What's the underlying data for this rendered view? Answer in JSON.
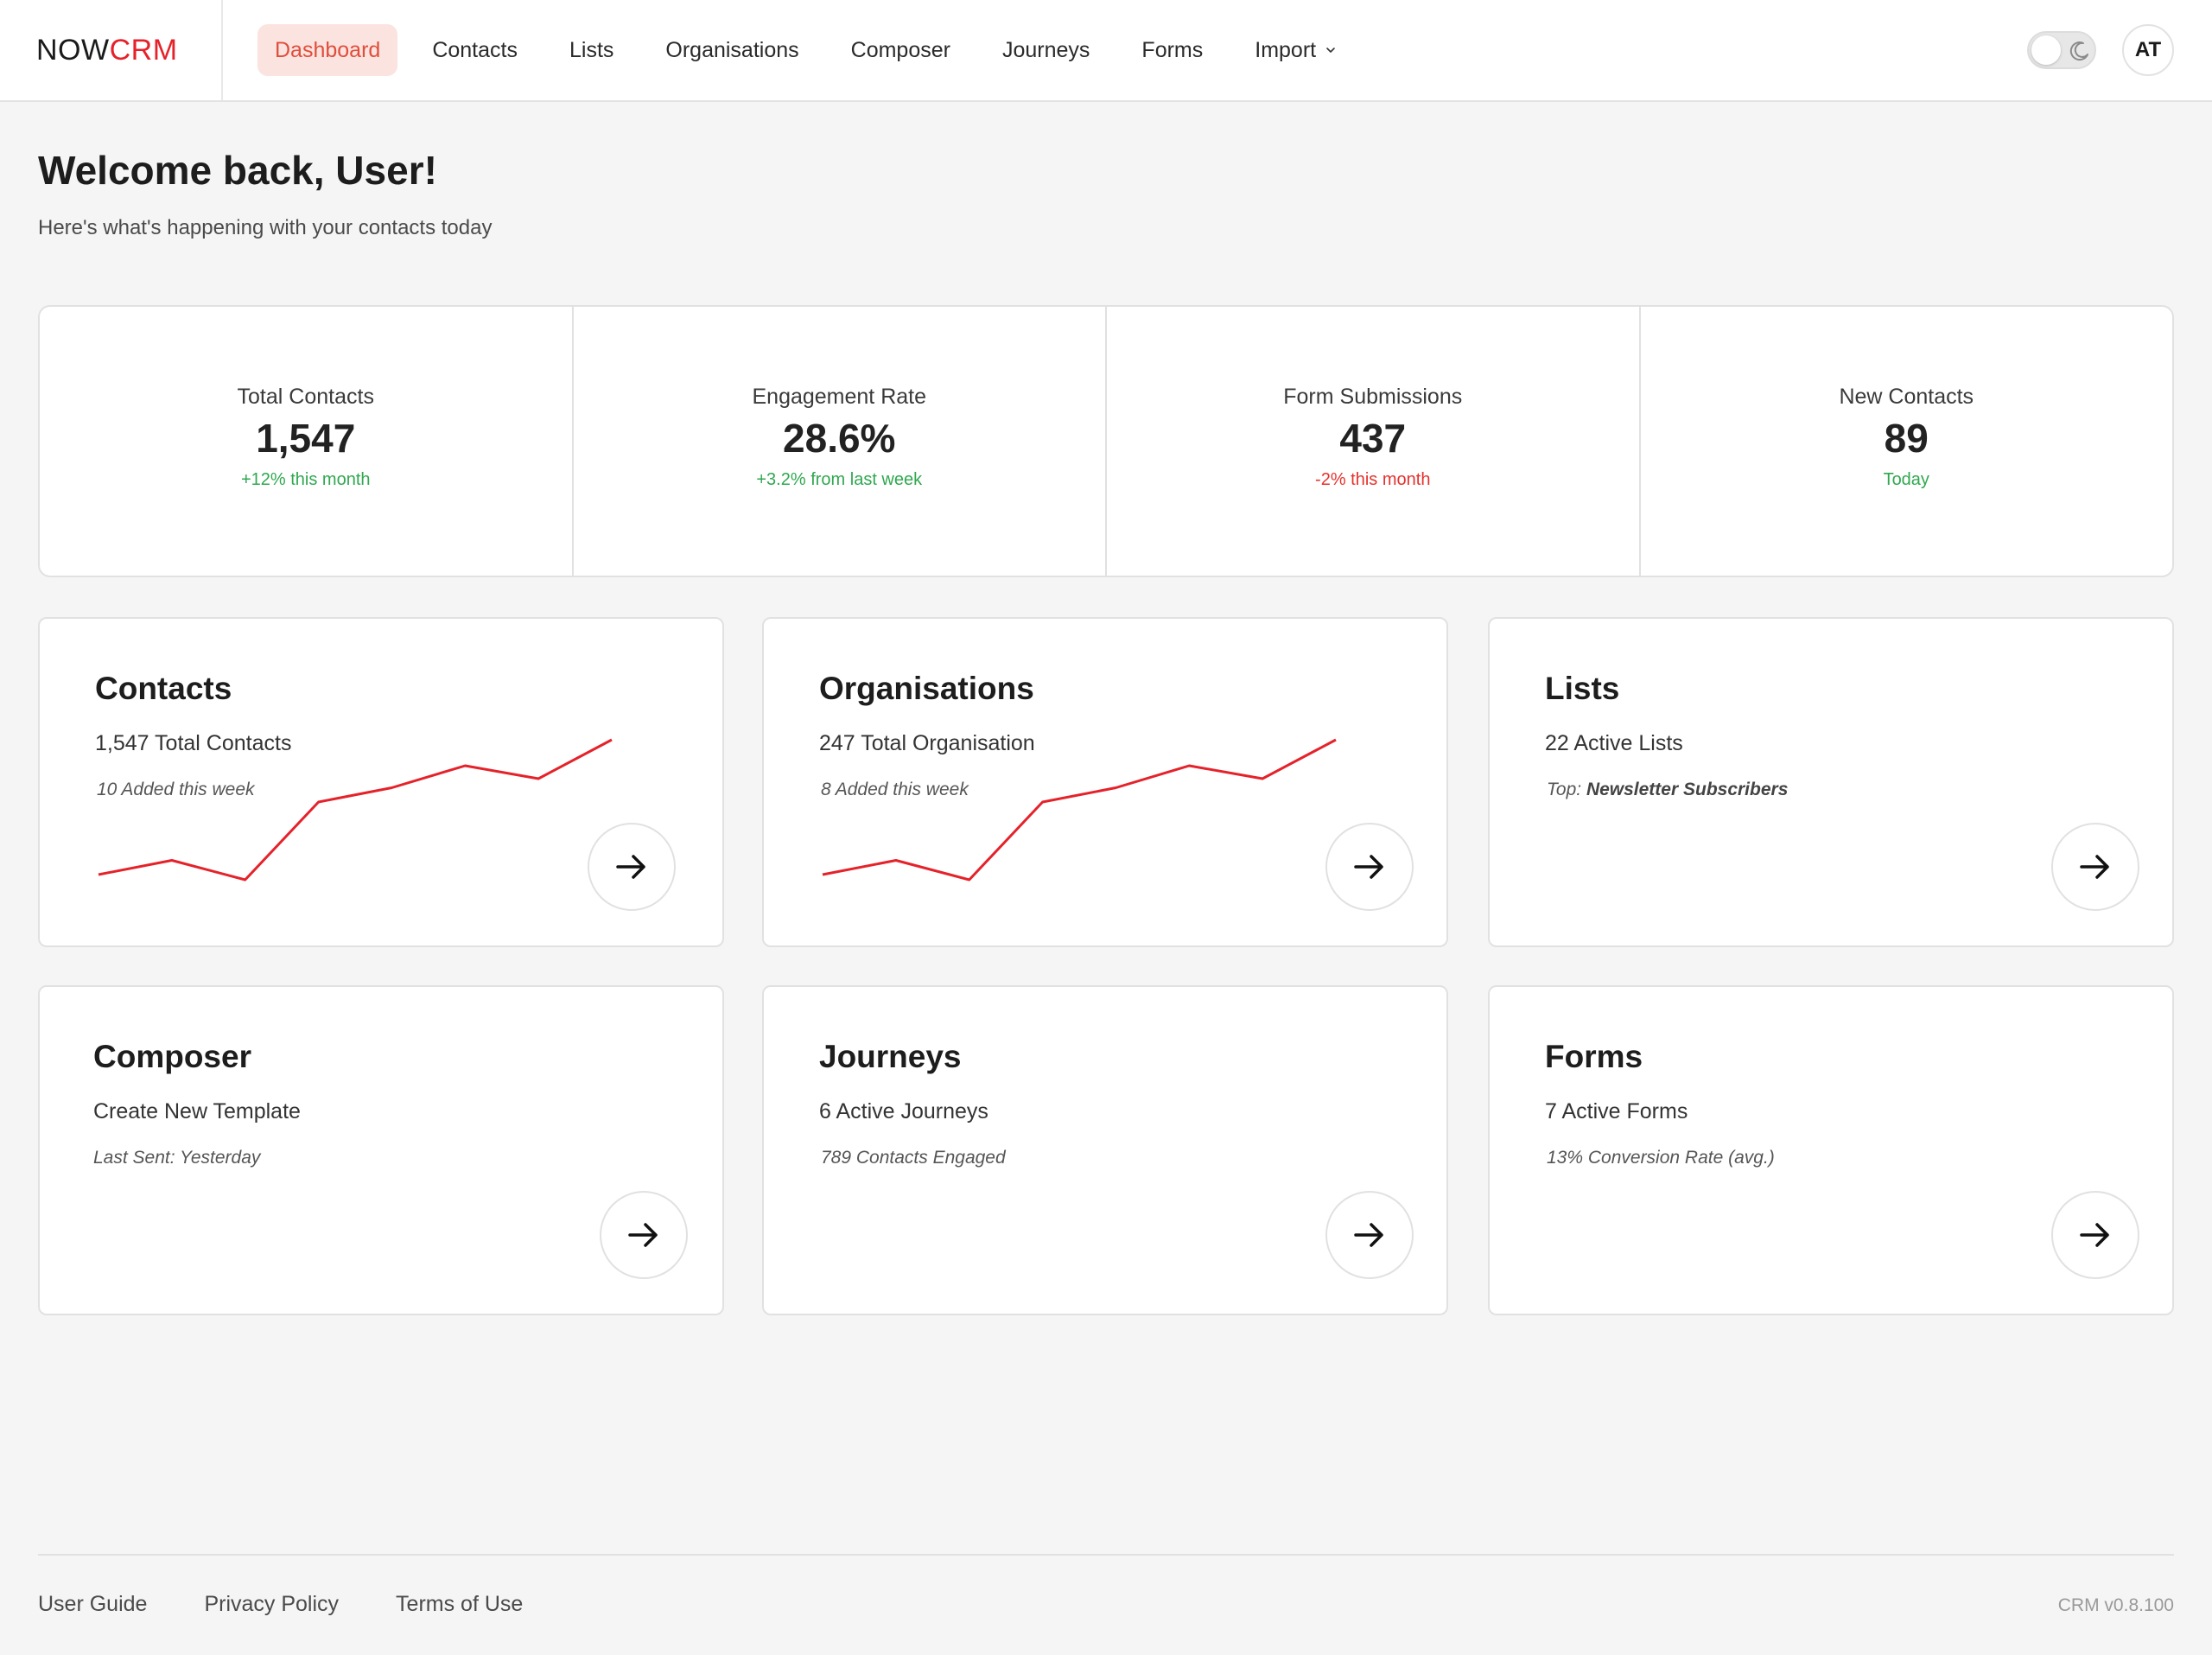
{
  "brand": {
    "part1": "NOW",
    "part2": "CRM",
    "accent": "#e5222a"
  },
  "nav": {
    "items": [
      {
        "label": "Dashboard",
        "active": true
      },
      {
        "label": "Contacts"
      },
      {
        "label": "Lists"
      },
      {
        "label": "Organisations"
      },
      {
        "label": "Composer"
      },
      {
        "label": "Journeys"
      },
      {
        "label": "Forms"
      },
      {
        "label": "Import",
        "icon": "chevron-down-icon"
      }
    ]
  },
  "header": {
    "theme_toggle_icon": "moon-icon",
    "avatar_initials": "AT"
  },
  "welcome": {
    "title": "Welcome back, User!",
    "subtitle": "Here's what's happening with your contacts today"
  },
  "stats": [
    {
      "label": "Total Contacts",
      "value": "1,547",
      "delta": "+12% this month",
      "trend": "positive"
    },
    {
      "label": "Engagement Rate",
      "value": "28.6%",
      "delta": "+3.2% from last week",
      "trend": "positive"
    },
    {
      "label": "Form Submissions",
      "value": "437",
      "delta": "-2% this month",
      "trend": "negative"
    },
    {
      "label": "New Contacts",
      "value": "89",
      "delta": "Today",
      "trend": "positive"
    }
  ],
  "colors": {
    "positive": "#2fa84f",
    "negative": "#e5322d",
    "sparkline": "#e5222a"
  },
  "cards": {
    "contacts": {
      "title": "Contacts",
      "subtitle": "1,547 Total Contacts",
      "note": "10 Added this week",
      "sparkline": [
        0.16,
        0.27,
        0.12,
        0.72,
        0.83,
        1.0,
        0.9,
        1.2
      ]
    },
    "organisations": {
      "title": "Organisations",
      "subtitle": "247 Total Organisation",
      "note": "8 Added this week",
      "sparkline": [
        0.16,
        0.27,
        0.12,
        0.72,
        0.83,
        1.0,
        0.9,
        1.2
      ]
    },
    "lists": {
      "title": "Lists",
      "subtitle": "22 Active Lists",
      "note_prefix": "Top: ",
      "note_value": "Newsletter Subscribers"
    },
    "composer": {
      "title": "Composer",
      "subtitle": "Create New Template",
      "note": "Last Sent: Yesterday"
    },
    "journeys": {
      "title": "Journeys",
      "subtitle": "6 Active Journeys",
      "note": "789 Contacts Engaged"
    },
    "forms": {
      "title": "Forms",
      "subtitle": "7 Active Forms",
      "note": "13% Conversion Rate (avg.)"
    }
  },
  "footer": {
    "links": [
      "User Guide",
      "Privacy Policy",
      "Terms of Use"
    ],
    "version": "CRM v0.8.100"
  }
}
